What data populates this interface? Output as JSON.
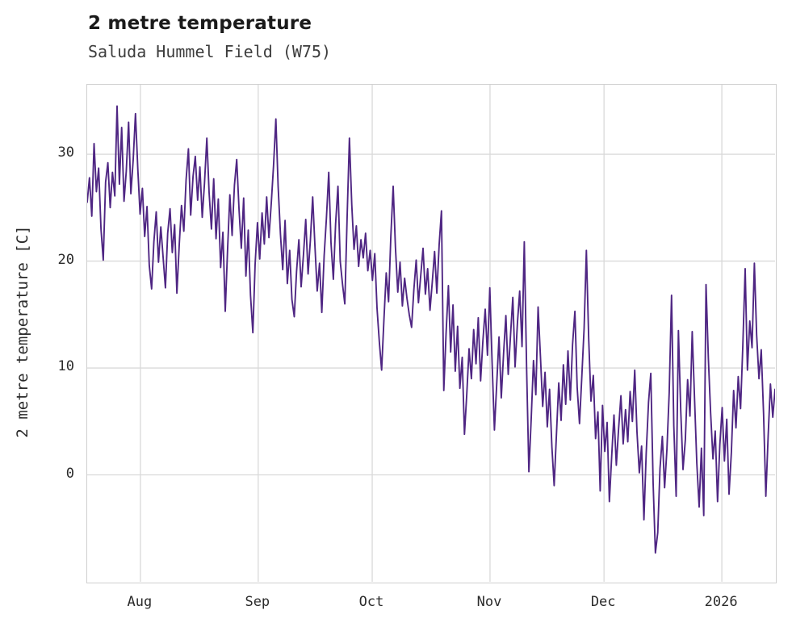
{
  "header": {
    "title": "2 metre temperature",
    "subtitle": "Saluda Hummel Field (W75)"
  },
  "chart_data": {
    "type": "line",
    "title": "2 metre temperature",
    "subtitle": "Saluda Hummel Field (W75)",
    "ylabel": "2 metre temperature [C]",
    "xlabel": "",
    "series_name": "2 metre temperature",
    "line_color": "#4f2683",
    "grid": true,
    "legend": "none",
    "background": "#ffffff",
    "grid_color": "#d9d9d9",
    "frame_color": "#cfcfcf",
    "y_ticks": [
      0,
      10,
      20,
      30
    ],
    "ylim": [
      -10,
      36.5
    ],
    "x_ticks": [
      {
        "label": "Aug",
        "day": 14
      },
      {
        "label": "Sep",
        "day": 45
      },
      {
        "label": "Oct",
        "day": 75
      },
      {
        "label": "Nov",
        "day": 106
      },
      {
        "label": "Dec",
        "day": 136
      },
      {
        "label": "2026",
        "day": 167
      }
    ],
    "x_total_days": 181,
    "sample_interval_days": 0.603,
    "values": [
      25.5,
      27.8,
      24.2,
      31.0,
      26.5,
      28.7,
      23.0,
      20.1,
      27.4,
      29.2,
      25.0,
      28.3,
      26.1,
      34.5,
      27.2,
      32.5,
      25.6,
      28.4,
      33.0,
      26.3,
      29.5,
      33.8,
      28.6,
      24.4,
      26.8,
      22.3,
      25.1,
      19.6,
      17.4,
      21.8,
      24.6,
      19.9,
      23.2,
      20.4,
      17.5,
      22.6,
      24.9,
      20.8,
      23.4,
      17.0,
      21.5,
      25.2,
      22.8,
      27.6,
      30.5,
      24.3,
      27.9,
      29.8,
      25.7,
      28.8,
      24.1,
      27.3,
      31.5,
      26.4,
      23.0,
      27.7,
      22.1,
      25.8,
      19.4,
      22.7,
      15.3,
      20.9,
      26.2,
      22.4,
      27.1,
      29.5,
      24.8,
      21.2,
      25.9,
      18.6,
      22.9,
      16.8,
      13.3,
      19.7,
      23.6,
      20.2,
      24.5,
      21.6,
      26.0,
      22.2,
      25.4,
      28.9,
      33.3,
      27.0,
      22.5,
      19.2,
      23.8,
      17.9,
      21.0,
      16.4,
      14.8,
      19.0,
      22.0,
      17.6,
      20.6,
      23.9,
      18.8,
      21.9,
      26.0,
      21.4,
      17.2,
      19.8,
      15.2,
      20.5,
      24.0,
      28.3,
      21.7,
      18.3,
      23.5,
      27.0,
      20.0,
      17.8,
      16.0,
      24.2,
      31.5,
      25.3,
      21.1,
      23.3,
      19.5,
      22.0,
      20.3,
      22.6,
      19.1,
      21.0,
      18.2,
      20.7,
      15.6,
      12.4,
      9.8,
      14.6,
      18.9,
      16.2,
      22.3,
      27.0,
      21.3,
      17.1,
      19.9,
      15.8,
      18.4,
      16.5,
      15.0,
      13.8,
      17.3,
      20.1,
      16.1,
      18.7,
      21.2,
      16.9,
      19.3,
      15.4,
      18.0,
      20.9,
      17.0,
      21.6,
      24.7,
      7.9,
      13.2,
      17.7,
      11.5,
      15.9,
      9.7,
      13.9,
      8.1,
      11.0,
      3.8,
      7.6,
      11.8,
      9.0,
      13.6,
      10.4,
      14.7,
      8.8,
      12.5,
      15.5,
      11.2,
      17.5,
      10.6,
      4.2,
      8.4,
      12.9,
      7.2,
      11.4,
      14.9,
      9.4,
      13.0,
      16.6,
      10.1,
      14.2,
      17.2,
      12.0,
      21.8,
      9.9,
      0.3,
      5.3,
      10.7,
      7.5,
      15.7,
      11.1,
      6.4,
      9.6,
      4.5,
      8.0,
      2.6,
      -1.0,
      3.9,
      8.6,
      5.1,
      10.3,
      6.6,
      11.6,
      7.0,
      12.2,
      15.3,
      8.2,
      4.8,
      9.1,
      13.7,
      21.0,
      12.7,
      6.9,
      9.3,
      3.4,
      5.9,
      -1.5,
      6.5,
      2.2,
      4.9,
      -2.5,
      1.8,
      5.6,
      0.9,
      4.3,
      7.4,
      2.9,
      6.1,
      3.1,
      7.8,
      5.0,
      9.8,
      4.0,
      0.2,
      2.7,
      -4.2,
      2.0,
      6.8,
      9.5,
      -0.8,
      -7.3,
      -5.4,
      0.6,
      3.6,
      -1.2,
      2.4,
      7.7,
      16.8,
      4.6,
      -2.0,
      13.5,
      6.0,
      0.5,
      3.3,
      8.9,
      5.5,
      13.4,
      7.1,
      1.1,
      -3.0,
      2.5,
      -3.8,
      17.8,
      10.9,
      5.8,
      1.5,
      4.1,
      -2.5,
      2.8,
      6.3,
      1.3,
      5.2,
      -1.8,
      2.1,
      7.9,
      4.4,
      9.2,
      6.2,
      12.1,
      19.3,
      9.8,
      14.4,
      11.9,
      19.8,
      13.1,
      9.0,
      11.7,
      5.7,
      -2.0,
      3.7,
      8.5,
      5.4,
      8.0
    ]
  }
}
